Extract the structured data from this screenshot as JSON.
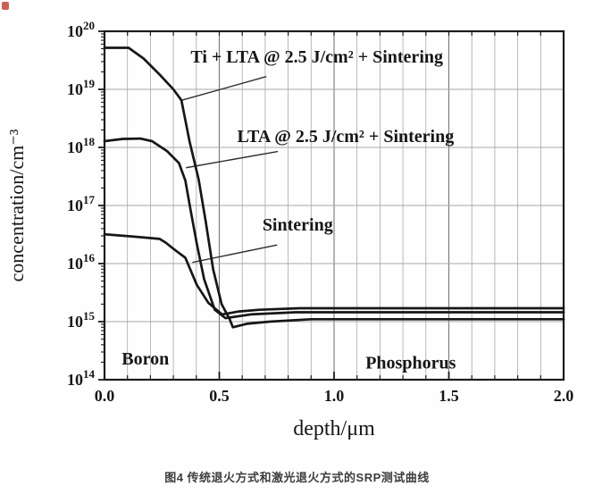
{
  "page": {
    "caption": "图4 传统退火方式和激光退火方式的SRP测试曲线"
  },
  "colors": {
    "curve": "#161616",
    "frame": "#1c1c1c",
    "grid_minor": "#a8a8a8",
    "grid_major": "#777777",
    "leader": "#2e2e2e",
    "red_mark": "#c2453a"
  },
  "chart_data": {
    "type": "line",
    "title": "",
    "xlabel": "depth/μm",
    "ylabel": "concentration/cm⁻³",
    "xlim": [
      0.0,
      2.0
    ],
    "x_major_ticks": [
      0.0,
      0.5,
      1.0,
      1.5,
      2.0
    ],
    "x_minor_step": 0.1,
    "y_scale": "log",
    "ylim_exp": [
      14,
      20
    ],
    "y_decade_ticks": [
      14,
      15,
      16,
      17,
      18,
      19,
      20
    ],
    "grid": "on",
    "legend_position": "inline-annotations",
    "series": [
      {
        "name": "Ti + LTA @ 2.5 J/cm² + Sintering",
        "x": [
          0.0,
          0.105,
          0.17,
          0.24,
          0.3,
          0.335,
          0.371,
          0.41,
          0.441,
          0.473,
          0.51,
          0.545,
          0.559,
          0.62,
          0.72,
          0.9,
          1.2,
          2.0
        ],
        "y": [
          5.2e+19,
          5.2e+19,
          3.4e+19,
          1.8e+19,
          1e+19,
          6.5e+18,
          1.25e+18,
          2.8e+17,
          5.3e+16,
          8000000000000000.0,
          2000000000000000.0,
          1100000000000000.0,
          800000000000000.0,
          920000000000000.0,
          1000000000000000.0,
          1100000000000000.0,
          1100000000000000.0,
          1100000000000000.0
        ]
      },
      {
        "name": "LTA @ 2.5 J/cm² + Sintering",
        "x": [
          0.0,
          0.08,
          0.156,
          0.207,
          0.273,
          0.324,
          0.352,
          0.375,
          0.402,
          0.434,
          0.48,
          0.527,
          0.637,
          0.832,
          1.2,
          2.0
        ],
        "y": [
          1.28e+18,
          1.4e+18,
          1.42e+18,
          1.28e+18,
          8.6e+17,
          5.4e+17,
          2.7e+17,
          8.3e+16,
          2.2e+16,
          5400000000000000.0,
          1600000000000000.0,
          1150000000000000.0,
          1330000000000000.0,
          1450000000000000.0,
          1450000000000000.0,
          1450000000000000.0
        ]
      },
      {
        "name": "Sintering",
        "x": [
          0.0,
          0.13,
          0.24,
          0.266,
          0.305,
          0.352,
          0.402,
          0.453,
          0.512,
          0.586,
          0.676,
          0.85,
          1.3,
          2.0
        ],
        "y": [
          3.2e+16,
          2.9e+16,
          2.66e+16,
          2.3e+16,
          1.74e+16,
          1.26e+16,
          4300000000000000.0,
          2100000000000000.0,
          1330000000000000.0,
          1500000000000000.0,
          1600000000000000.0,
          1700000000000000.0,
          1700000000000000.0,
          1700000000000000.0
        ]
      }
    ],
    "annotations": [
      {
        "series": 0,
        "tx": 0.375,
        "ty_exp": 19.46,
        "leader": {
          "x1": 0.335,
          "e1": 18.81,
          "x2": 0.705,
          "e2": 19.22
        }
      },
      {
        "series": 1,
        "tx": 0.578,
        "ty_exp": 18.09,
        "leader": {
          "x1": 0.355,
          "e1": 17.65,
          "x2": 0.755,
          "e2": 17.93
        }
      },
      {
        "series": 2,
        "tx": 0.688,
        "ty_exp": 16.57,
        "leader": {
          "x1": 0.383,
          "e1": 16.02,
          "x2": 0.752,
          "e2": 16.32
        }
      }
    ],
    "region_labels": [
      {
        "text": "Boron",
        "x": 0.075,
        "y_exp": 14.26
      },
      {
        "text": "Phosphorus",
        "x": 1.137,
        "y_exp": 14.19
      }
    ]
  }
}
